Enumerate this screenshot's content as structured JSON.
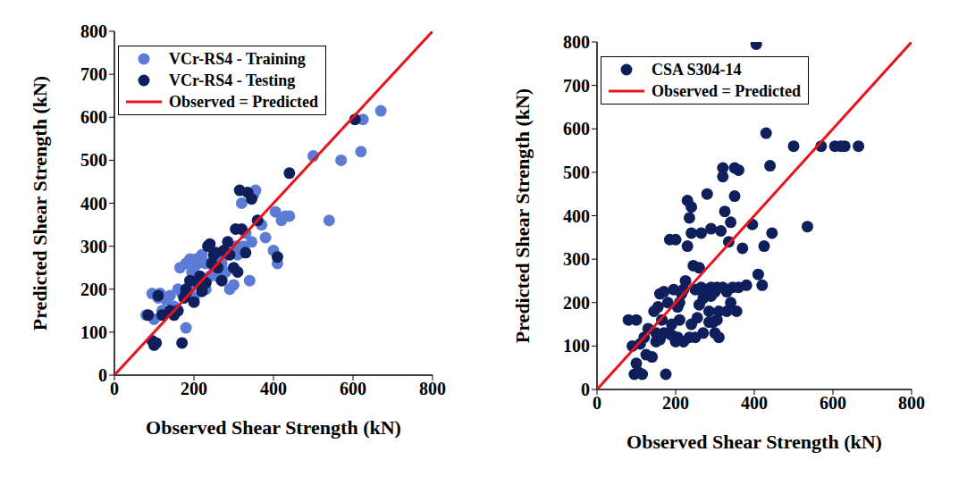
{
  "chart_data": [
    {
      "type": "scatter",
      "x_label": "Observed Shear Strength (kN)",
      "y_label": "Predicted Shear Strength (kN)",
      "xlim": [
        0,
        800
      ],
      "xticks": [
        0,
        200,
        400,
        600,
        800
      ],
      "ylim": [
        0,
        800
      ],
      "yticks": [
        0,
        100,
        200,
        300,
        400,
        500,
        600,
        700,
        800
      ],
      "grid": false,
      "legend": "top-left",
      "series": [
        {
          "name": "VCr-RS4 - Training",
          "color": "#5b7bd5",
          "marker": "circle",
          "x": [
            80,
            95,
            100,
            110,
            115,
            120,
            130,
            140,
            150,
            160,
            165,
            170,
            180,
            180,
            190,
            195,
            200,
            200,
            205,
            210,
            215,
            220,
            230,
            240,
            250,
            260,
            270,
            280,
            290,
            300,
            305,
            310,
            320,
            325,
            340,
            345,
            350,
            355,
            360,
            370,
            380,
            400,
            405,
            410,
            420,
            430,
            440,
            500,
            540,
            570,
            620,
            625,
            670,
            190,
            230,
            260,
            280,
            330,
            250
          ],
          "values": [
            140,
            190,
            130,
            180,
            190,
            150,
            175,
            185,
            160,
            200,
            250,
            190,
            110,
            260,
            270,
            240,
            250,
            180,
            270,
            260,
            210,
            280,
            200,
            230,
            270,
            230,
            260,
            280,
            200,
            210,
            300,
            280,
            400,
            300,
            220,
            310,
            420,
            430,
            360,
            350,
            320,
            290,
            380,
            260,
            360,
            370,
            370,
            510,
            360,
            500,
            520,
            595,
            615,
            200,
            260,
            280,
            240,
            330,
            240
          ]
        },
        {
          "name": "VCr-RS4 - Testing",
          "color": "#0f1f5c",
          "marker": "circle",
          "x": [
            85,
            95,
            100,
            105,
            110,
            120,
            140,
            150,
            160,
            170,
            175,
            180,
            190,
            200,
            210,
            220,
            230,
            235,
            240,
            245,
            250,
            255,
            260,
            270,
            275,
            280,
            290,
            300,
            305,
            310,
            315,
            320,
            330,
            335,
            345,
            360,
            410,
            440,
            605,
            215,
            180,
            285
          ],
          "values": [
            140,
            80,
            70,
            75,
            185,
            140,
            150,
            140,
            150,
            75,
            180,
            200,
            220,
            170,
            215,
            195,
            215,
            300,
            305,
            260,
            280,
            285,
            250,
            220,
            290,
            285,
            280,
            250,
            340,
            240,
            430,
            340,
            285,
            425,
            410,
            360,
            275,
            470,
            595,
            230,
            190,
            310
          ]
        },
        {
          "name": "Observed = Predicted",
          "color": "#e8141b",
          "type": "line",
          "line_style": "solid",
          "x": [
            0,
            800
          ],
          "values": [
            0,
            800
          ]
        }
      ]
    },
    {
      "type": "scatter",
      "x_label": "Observed Shear Strength (kN)",
      "y_label": "Predicted Shear Strength (kN)",
      "xlim": [
        0,
        800
      ],
      "xticks": [
        0,
        200,
        400,
        600,
        800
      ],
      "ylim": [
        0,
        800
      ],
      "yticks": [
        0,
        100,
        200,
        300,
        400,
        500,
        600,
        700,
        800
      ],
      "grid": false,
      "legend": "top-left",
      "series": [
        {
          "name": "CSA S304-14",
          "color": "#0f1f5c",
          "marker": "circle",
          "x": [
            80,
            90,
            95,
            100,
            100,
            105,
            110,
            115,
            120,
            125,
            130,
            140,
            150,
            150,
            155,
            160,
            165,
            170,
            175,
            180,
            180,
            185,
            190,
            190,
            195,
            200,
            200,
            205,
            210,
            210,
            215,
            220,
            220,
            225,
            230,
            230,
            235,
            235,
            240,
            240,
            240,
            245,
            250,
            250,
            255,
            260,
            260,
            265,
            270,
            270,
            275,
            280,
            285,
            285,
            290,
            290,
            295,
            300,
            300,
            305,
            310,
            310,
            315,
            320,
            320,
            320,
            325,
            330,
            330,
            335,
            340,
            340,
            345,
            350,
            350,
            355,
            360,
            360,
            370,
            380,
            395,
            405,
            410,
            420,
            425,
            430,
            440,
            445,
            500,
            535,
            570,
            605,
            620,
            630,
            665,
            145,
            160,
            170,
            205,
            260,
            290,
            265,
            305
          ],
          "values": [
            160,
            100,
            35,
            160,
            60,
            40,
            105,
            35,
            120,
            80,
            140,
            75,
            130,
            110,
            190,
            115,
            160,
            225,
            35,
            130,
            200,
            345,
            150,
            125,
            230,
            110,
            345,
            120,
            160,
            200,
            220,
            110,
            230,
            250,
            330,
            435,
            120,
            395,
            420,
            360,
            150,
            285,
            230,
            120,
            165,
            280,
            195,
            360,
            130,
            210,
            230,
            450,
            155,
            180,
            370,
            235,
            155,
            130,
            225,
            235,
            120,
            180,
            365,
            510,
            490,
            235,
            410,
            180,
            225,
            340,
            385,
            200,
            235,
            445,
            510,
            180,
            505,
            235,
            325,
            240,
            380,
            795,
            265,
            240,
            330,
            590,
            515,
            360,
            560,
            375,
            560,
            560,
            560,
            560,
            560,
            180,
            220,
            130,
            190,
            230,
            215,
            235,
            160
          ]
        },
        {
          "name": "Observed = Predicted",
          "color": "#e8141b",
          "type": "line",
          "line_style": "solid",
          "x": [
            0,
            800
          ],
          "values": [
            0,
            800
          ]
        }
      ]
    }
  ]
}
